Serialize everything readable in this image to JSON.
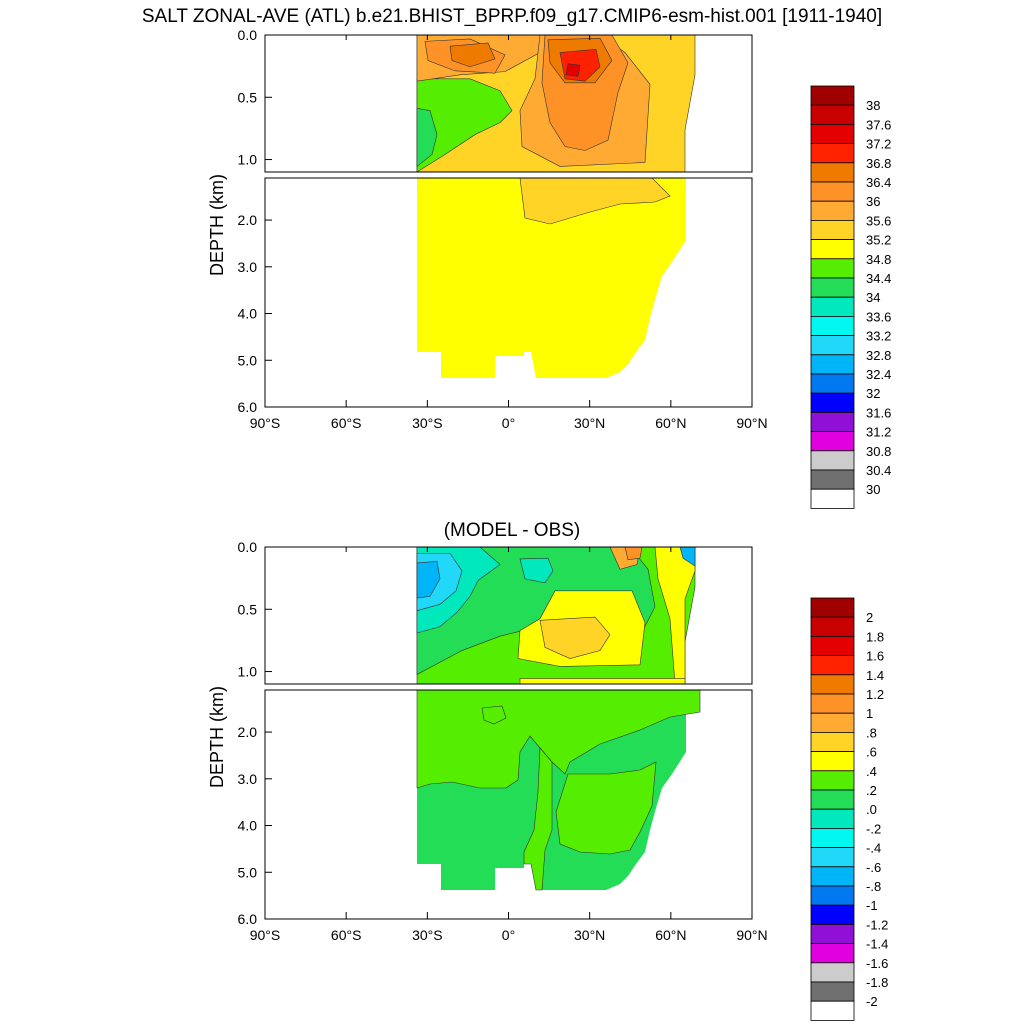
{
  "main_title": "SALT ZONAL-AVE (ATL) b.e21.BHIST_BPRP.f09_g17.CMIP6-esm-hist.001 [1911-1940]",
  "chart_data": [
    {
      "type": "heatmap",
      "title": "SALT ZONAL-AVE (ATL) b.e21.BHIST_BPRP.f09_g17.CMIP6-esm-hist.001 [1911-1940]",
      "ylabel": "DEPTH (km)",
      "x_ticks": [
        "90°S",
        "60°S",
        "30°S",
        "0°",
        "30°N",
        "60°N",
        "90°N"
      ],
      "y_ticks_upper": [
        "0.0",
        "0.5",
        "1.0"
      ],
      "y_ticks_lower": [
        "2.0",
        "3.0",
        "4.0",
        "5.0",
        "6.0"
      ],
      "xlim": [
        -90,
        90
      ],
      "ylim_upper": [
        0,
        1.1
      ],
      "ylim_lower": [
        1.1,
        6.0
      ],
      "levels": [
        "38",
        "37.6",
        "37.2",
        "36.8",
        "36.4",
        "36",
        "35.6",
        "35.2",
        "34.8",
        "34.4",
        "34",
        "33.6",
        "33.2",
        "32.8",
        "32.4",
        "32",
        "31.6",
        "31.2",
        "30.8",
        "30.4",
        "30"
      ],
      "colors": [
        "#a00000",
        "#c80000",
        "#e40000",
        "#ff2200",
        "#ee7a00",
        "#fe9226",
        "#ffaa33",
        "#ffd426",
        "#ffff00",
        "#55ee00",
        "#22dd55",
        "#00e8bb",
        "#00f8f0",
        "#22d8f8",
        "#00b4f8",
        "#0078f0",
        "#0000ff",
        "#9010d8",
        "#e000e0",
        "#cccccc",
        "#707070",
        "#ffffff"
      ]
    },
    {
      "type": "heatmap",
      "title": "(MODEL - OBS)",
      "ylabel": "DEPTH (km)",
      "x_ticks": [
        "90°S",
        "60°S",
        "30°S",
        "0°",
        "30°N",
        "60°N",
        "90°N"
      ],
      "y_ticks_upper": [
        "0.0",
        "0.5",
        "1.0"
      ],
      "y_ticks_lower": [
        "2.0",
        "3.0",
        "4.0",
        "5.0",
        "6.0"
      ],
      "xlim": [
        -90,
        90
      ],
      "ylim_upper": [
        0,
        1.1
      ],
      "ylim_lower": [
        1.1,
        6.0
      ],
      "levels": [
        "2",
        "1.8",
        "1.6",
        "1.4",
        "1.2",
        "1",
        ".8",
        ".6",
        ".4",
        ".2",
        ".0",
        "-.2",
        "-.4",
        "-.6",
        "-.8",
        "-1",
        "-1.2",
        "-1.4",
        "-1.6",
        "-1.8",
        "-2"
      ],
      "colors": [
        "#a00000",
        "#c80000",
        "#e40000",
        "#ff2200",
        "#ee7a00",
        "#fe9226",
        "#ffaa33",
        "#ffd426",
        "#ffff00",
        "#55ee00",
        "#22dd55",
        "#00e8bb",
        "#00f8f0",
        "#22d8f8",
        "#00b4f8",
        "#0078f0",
        "#0000ff",
        "#9010d8",
        "#e000e0",
        "#cccccc",
        "#707070",
        "#ffffff"
      ]
    }
  ]
}
